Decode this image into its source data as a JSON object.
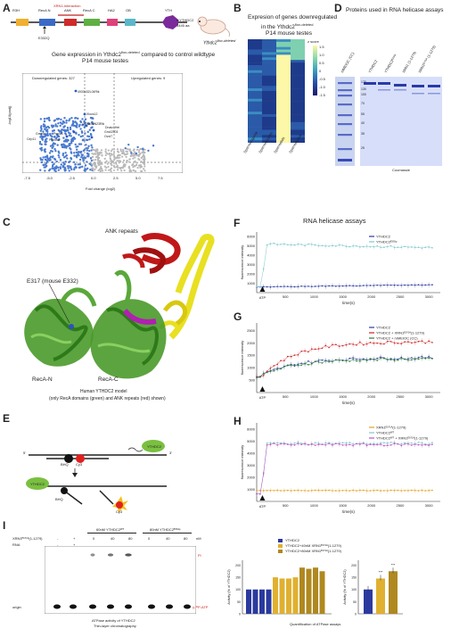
{
  "panels": {
    "A": "A",
    "B": "B",
    "C": "C",
    "D": "D",
    "E": "E",
    "F": "F",
    "G": "G",
    "H": "H",
    "I": "I"
  },
  "panelA": {
    "domains": [
      "R3H",
      "RecA N",
      "ANK",
      "RecA C",
      "HA2",
      "OB",
      "YTH"
    ],
    "xrn1_interaction": "XRN1-interaction",
    "mutation": "E332Q",
    "protein": "mYTHDC2",
    "length": "1445 aa",
    "mouse_label": "Ythdc2",
    "mouse_sup": "flox-deleted",
    "gene_expr_title_1": "Gene expression in Ythdc2",
    "gene_expr_sup": "flox-deleted",
    "gene_expr_title_2": " compared to control wildtype",
    "gene_expr_title_3": "P14 mouse testes",
    "downregulated": "Downregulated genes: 327",
    "upregulated": "Upregulated genes: 9",
    "ylabel": "-log10(padj)",
    "xlabel": "Fold change (log2)",
    "xticks": [
      "-7.5",
      "-5.0",
      "-2.5",
      "0.0",
      "2.5",
      "5.0",
      "7.5"
    ],
    "genes": [
      "4933432L04Rik",
      "Xlocs12",
      "4930599N23Rik",
      "Dnaic1Hei",
      "Gm42303",
      "Ovol7",
      "Greb1l",
      "Cep11",
      "Pnpla1",
      "Penknd"
    ]
  },
  "panelB": {
    "title_1": "Expresion of genes downregulated",
    "title_2": "in the Ythdc2",
    "title_sup": "flox-deleted",
    "title_3": "P14 mouse testes",
    "zscore": "z score",
    "scale": [
      "1.5",
      "1.0",
      "0.5",
      "0",
      "-0.5",
      "-1.0",
      "-1.5"
    ],
    "columns": [
      "Spermatogonia",
      "Spermatocytes",
      "Spermatids",
      "Spermatozoa"
    ]
  },
  "panelD": {
    "title": "Proteins used in RNA helicase assays",
    "lanes": [
      "mMEIOC (CC)",
      "YTHDC2",
      "YTHDC2ᴱ³³²ᵠ",
      "XRN1 (1-1279)",
      "XRN1ᴱ¹⁰¹ᴬ (1-1279)"
    ],
    "markers": [
      "170",
      "130",
      "100",
      "70",
      "55",
      "40",
      "35",
      "25"
    ],
    "stain": "Coomassie"
  },
  "panelC": {
    "ank": "ANK repeats",
    "e317": "E317 (mouse E332)",
    "reca_n": "RecA-N",
    "reca_c": "RecA-C",
    "caption_1": "Human YTHDC2 model",
    "caption_2": "(only RecA domains (green) and ANK repeats (red) shown)"
  },
  "assay_title": "RNA helicase assays",
  "panelF": {
    "ylabel": "fluorescence intensity",
    "xlabel": "time(s)",
    "atp": "ATP",
    "legend": [
      "YTHDC2",
      "YTHDC2ᴱ³³²ᵠ"
    ],
    "yticks": [
      "6000",
      "5000",
      "4000",
      "3000",
      "2000",
      "1000"
    ],
    "xticks": [
      "500",
      "1000",
      "1500",
      "2000",
      "2500",
      "3000"
    ]
  },
  "panelG": {
    "ylabel": "fluorescence intensity",
    "xlabel": "time(s)",
    "atp": "ATP",
    "legend": [
      "YTHDC2",
      "YTHDC2 + XRN1ᴱ¹⁰¹ᴬ(1-1279)",
      "YTHDC2 + mMEIOC (CC)"
    ],
    "yticks": [
      "2500",
      "2000",
      "1500",
      "1000",
      "500"
    ],
    "xticks": [
      "500",
      "1000",
      "1500",
      "2000",
      "2500",
      "3000"
    ]
  },
  "panelH": {
    "ylabel": "fluorescence intensity",
    "xlabel": "time(s)",
    "atp": "ATP",
    "legend": [
      "XRN1ᴱ¹⁰¹ᴬ(1-1279)",
      "YTHDC2ᵂᵀ",
      "YTHDC2ᵂᵀ + XRN1ᴱ¹⁰¹ᴬ(1-1279)"
    ],
    "yticks": [
      "6000",
      "5000",
      "4000",
      "3000",
      "2000",
      "1000"
    ],
    "xticks": [
      "500",
      "1000",
      "1500",
      "2000",
      "2500",
      "3000"
    ]
  },
  "panelE": {
    "bhq": "BHQ",
    "cy3": "Cy3",
    "ythdc2": "YTHDC2",
    "p5": "5'",
    "p3": "3'"
  },
  "panelI": {
    "xrn_label": "XRN1ᴱ¹⁰¹ᴬ(1-1279)",
    "rna_label": "RNA",
    "group1": "60nM YTHDC2ᵂᵀ",
    "group2": "80nM YTHDC2ᴱ³³²ᵠ",
    "conc": [
      "0",
      "40",
      "80",
      "0",
      "40",
      "80",
      "nM"
    ],
    "signs_xrn": [
      "-",
      "+"
    ],
    "pi": "Pi",
    "origin": "origin",
    "atp": "γ-³²P-ATP",
    "tlc_caption_1": "ATPase activity of YTHDC2",
    "tlc_caption_2": "Thin-layer chromatography",
    "legend": [
      "YTHDC2",
      "YTHDC2+40nM XRN1ᴱ¹⁰¹ᴬ(1-1279)",
      "YTHDC2+80nM XRN1ᴱ¹⁰¹ᴬ(1-1279)"
    ],
    "ylabel": "Activity (% of YTHDC2)",
    "bar_caption": "Quantification of ATPase assays",
    "sig": [
      "***",
      "***"
    ],
    "inset_yticks": [
      "200",
      "150",
      "100",
      "50",
      "0"
    ],
    "main_yticks": [
      "200",
      "150",
      "100",
      "50",
      "0"
    ]
  },
  "chart_data": [
    {
      "type": "line",
      "panel": "F",
      "series": [
        {
          "name": "YTHDC2",
          "color": "#2b3a9e",
          "plateau": 800,
          "rise": 0
        },
        {
          "name": "YTHDC2 E332Q",
          "color": "#7fc7c9",
          "plateau": 5200,
          "rise": 1
        }
      ],
      "ylim": [
        0,
        6500
      ],
      "xlim": [
        0,
        3200
      ]
    },
    {
      "type": "line",
      "panel": "G",
      "series": [
        {
          "name": "YTHDC2",
          "color": "#2b3a9e",
          "plateau": 1400
        },
        {
          "name": "YTHDC2 + XRN1 E101A(1-1279)",
          "color": "#cc2222",
          "plateau": 2050
        },
        {
          "name": "YTHDC2 + mMEIOC (CC)",
          "color": "#2a7a3a",
          "plateau": 1350
        }
      ],
      "ylim": [
        0,
        2800
      ],
      "xlim": [
        0,
        3200
      ]
    },
    {
      "type": "line",
      "panel": "H",
      "series": [
        {
          "name": "XRN1 E101A(1-1279)",
          "color": "#e0a020",
          "plateau": 900
        },
        {
          "name": "YTHDC2 WT",
          "color": "#7fc7c9",
          "plateau": 4800
        },
        {
          "name": "YTHDC2 WT + XRN1 E101A(1-1279)",
          "color": "#c050c0",
          "plateau": 4700
        }
      ],
      "ylim": [
        0,
        6500
      ],
      "xlim": [
        0,
        3200
      ]
    },
    {
      "type": "bar",
      "panel": "I-main",
      "values": [
        100,
        100,
        100,
        100,
        150,
        145,
        145,
        150,
        190,
        185,
        190,
        175
      ],
      "colors": [
        "#2b3a9e",
        "#2b3a9e",
        "#2b3a9e",
        "#2b3a9e",
        "#e0b030",
        "#e0b030",
        "#e0b030",
        "#e0b030",
        "#b08820",
        "#b08820",
        "#b08820",
        "#b08820"
      ],
      "ylim": [
        0,
        220
      ]
    },
    {
      "type": "bar",
      "panel": "I-inset",
      "categories": [
        "YTHDC2",
        "+40nM XRN1",
        "+80nM XRN1"
      ],
      "values": [
        100,
        145,
        175
      ],
      "colors": [
        "#2b3a9e",
        "#e0b030",
        "#b08820"
      ],
      "ylim": [
        0,
        220
      ]
    }
  ]
}
